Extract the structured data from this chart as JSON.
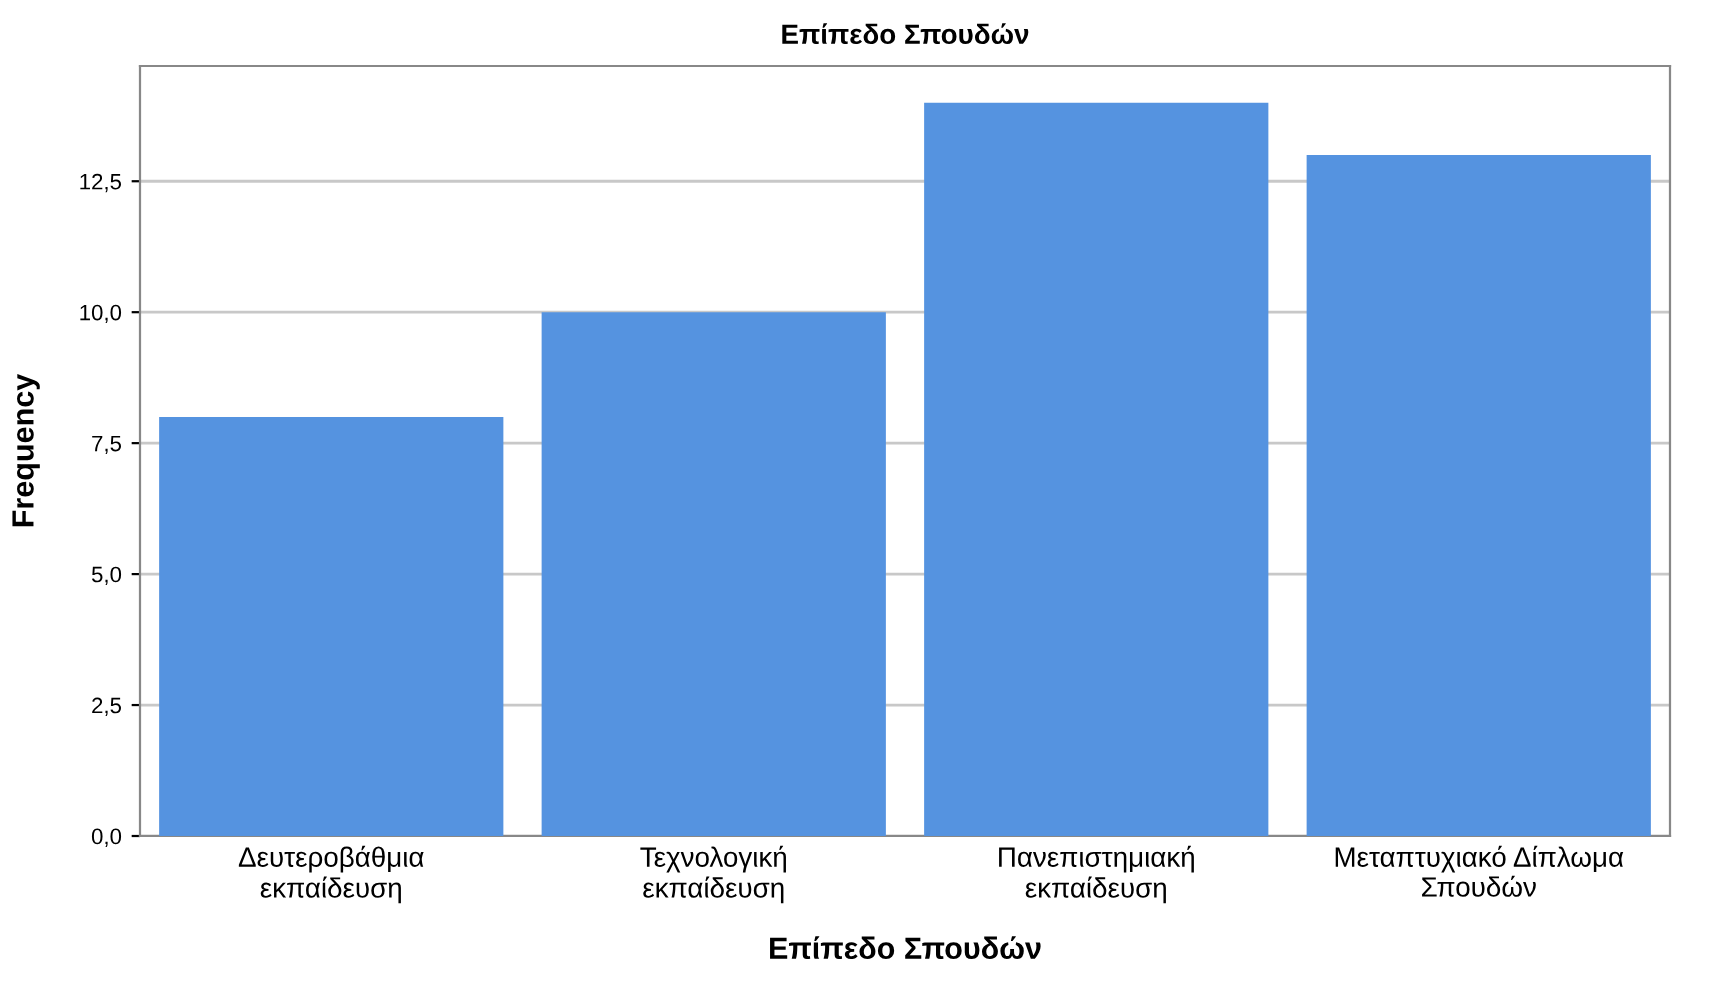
{
  "chart_data": {
    "type": "bar",
    "title": "Επίπεδο Σπουδών",
    "xlabel": "Επίπεδο Σπουδών",
    "ylabel": "Frequency",
    "categories": [
      "Δευτεροβάθμια\nεκπαίδευση",
      "Τεχνολογική\nεκπαίδευση",
      "Πανεπιστημιακή\nεκπαίδευση",
      "Μεταπτυχιακό Δίπλωμα\nΣπουδών"
    ],
    "values": [
      8,
      10,
      14,
      13
    ],
    "color": "#5593e0",
    "ylim": [
      0,
      14.7
    ],
    "yticks": [
      {
        "value": 0,
        "label": "0,0"
      },
      {
        "value": 2.5,
        "label": "2,5"
      },
      {
        "value": 5,
        "label": "5,0"
      },
      {
        "value": 7.5,
        "label": "7,5"
      },
      {
        "value": 10,
        "label": "10,0"
      },
      {
        "value": 12.5,
        "label": "12,5"
      }
    ],
    "grid": "y"
  }
}
